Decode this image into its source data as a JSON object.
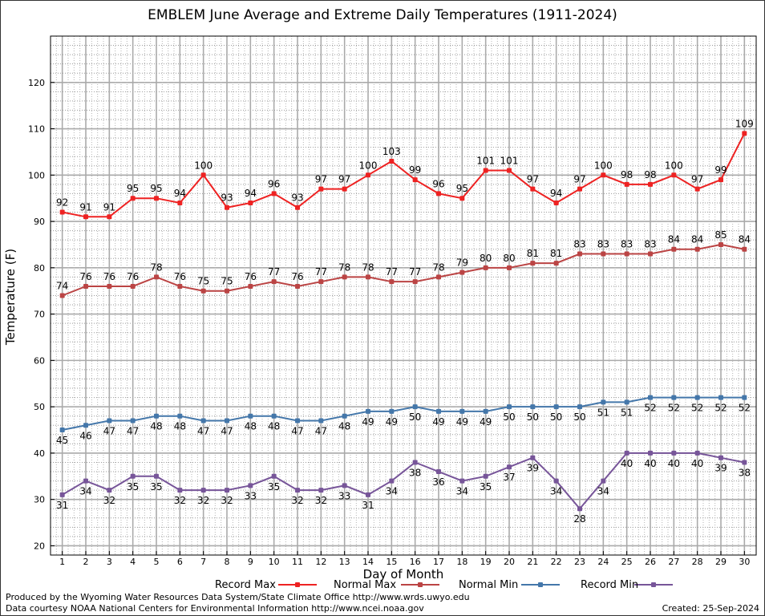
{
  "page": {
    "title": "EMBLEM June Average and Extreme Daily Temperatures (1911-2024)",
    "footer_produced": "Produced by the Wyoming Water Resources Data System/State Climate Office http://www.wrds.uwyo.edu",
    "footer_data": "Data courtesy NOAA National Centers for Environmental Information http://www.ncei.noaa.gov",
    "footer_created": "Created:  25-Sep-2024"
  },
  "chart_data": {
    "type": "line",
    "title": "EMBLEM June Average and Extreme Daily Temperatures (1911-2024)",
    "xlabel": "Day of Month",
    "ylabel": "Temperature (F)",
    "x": [
      1,
      2,
      3,
      4,
      5,
      6,
      7,
      8,
      9,
      10,
      11,
      12,
      13,
      14,
      15,
      16,
      17,
      18,
      19,
      20,
      21,
      22,
      23,
      24,
      25,
      26,
      27,
      28,
      29,
      30
    ],
    "xlim": [
      0.5,
      30.5
    ],
    "ylim": [
      18,
      130
    ],
    "yticks": [
      20,
      30,
      40,
      50,
      60,
      70,
      80,
      90,
      100,
      110,
      120
    ],
    "grid": true,
    "legend_position": "bottom",
    "series": [
      {
        "name": "Record Max",
        "color": "#ee2222",
        "label_position": "above",
        "values": [
          92,
          91,
          91,
          95,
          95,
          94,
          100,
          93,
          94,
          96,
          93,
          97,
          97,
          100,
          103,
          99,
          96,
          95,
          101,
          101,
          97,
          94,
          97,
          100,
          98,
          98,
          100,
          97,
          99,
          109
        ]
      },
      {
        "name": "Normal Max",
        "color": "#bb4444",
        "label_position": "above",
        "values": [
          74,
          76,
          76,
          76,
          78,
          76,
          75,
          75,
          76,
          77,
          76,
          77,
          78,
          78,
          77,
          77,
          78,
          79,
          80,
          80,
          81,
          81,
          83,
          83,
          83,
          83,
          84,
          84,
          85,
          84
        ]
      },
      {
        "name": "Normal Min",
        "color": "#4477aa",
        "label_position": "below",
        "values": [
          45,
          46,
          47,
          47,
          48,
          48,
          47,
          47,
          48,
          48,
          47,
          47,
          48,
          49,
          49,
          50,
          49,
          49,
          49,
          50,
          50,
          50,
          50,
          51,
          51,
          52,
          52,
          52,
          52,
          52
        ]
      },
      {
        "name": "Record Min",
        "color": "#775599",
        "label_position": "below",
        "values": [
          31,
          34,
          32,
          35,
          35,
          32,
          32,
          32,
          33,
          35,
          32,
          32,
          33,
          31,
          34,
          38,
          36,
          34,
          35,
          37,
          39,
          34,
          28,
          34,
          40,
          40,
          40,
          40,
          39,
          38
        ]
      }
    ]
  }
}
